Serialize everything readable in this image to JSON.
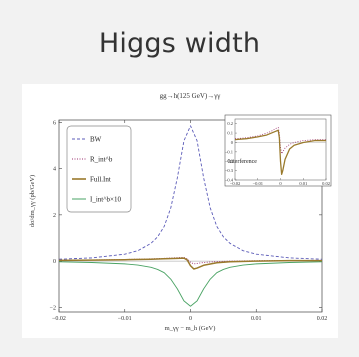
{
  "slide": {
    "title": "Higgs width"
  },
  "chart_data": {
    "type": "line",
    "title": "gg→h(125 GeV)→γγ",
    "xlabel": "m_γγ − m_h (GeV)",
    "ylabel": "dσ/dm_γγ (pb/GeV)",
    "xlim": [
      -0.02,
      0.02
    ],
    "ylim": [
      -2.2,
      6.1
    ],
    "xticks": [
      "−0.02",
      "−0.01",
      "0",
      "0.01",
      "0.02"
    ],
    "yticks": [
      "−2",
      "0",
      "2",
      "4",
      "6"
    ],
    "grid": false,
    "legend_position": "top-left",
    "series": [
      {
        "name": "BW",
        "style": "dashed",
        "color": "#5b5bb8",
        "x": [
          -0.02,
          -0.015,
          -0.01,
          -0.008,
          -0.006,
          -0.005,
          -0.004,
          -0.003,
          -0.002,
          -0.001,
          0,
          0.001,
          0.002,
          0.003,
          0.004,
          0.005,
          0.006,
          0.008,
          0.01,
          0.015,
          0.02
        ],
        "y": [
          0.08,
          0.14,
          0.3,
          0.45,
          0.77,
          1.05,
          1.5,
          2.3,
          3.6,
          5.2,
          5.85,
          5.2,
          3.6,
          2.3,
          1.5,
          1.05,
          0.77,
          0.45,
          0.3,
          0.14,
          0.08
        ]
      },
      {
        "name": "R_int^b",
        "style": "dotted",
        "color": "#9b2f6e",
        "x": [
          -0.02,
          -0.015,
          -0.01,
          -0.006,
          -0.004,
          -0.002,
          -0.001,
          -0.0005,
          0,
          0.0005,
          0.001,
          0.002,
          0.004,
          0.006,
          0.01,
          0.015,
          0.02
        ],
        "y": [
          0.04,
          0.05,
          0.07,
          0.1,
          0.12,
          0.15,
          0.16,
          0.1,
          -0.05,
          -0.12,
          -0.1,
          -0.06,
          -0.02,
          0.0,
          0.02,
          0.03,
          0.03
        ]
      },
      {
        "name": "Full.Int",
        "style": "solid",
        "color": "#9a7a2c",
        "x": [
          -0.02,
          -0.015,
          -0.01,
          -0.006,
          -0.004,
          -0.002,
          -0.001,
          -0.0005,
          0,
          0.0005,
          0.001,
          0.002,
          0.004,
          0.006,
          0.01,
          0.015,
          0.02
        ],
        "y": [
          0.03,
          0.04,
          0.06,
          0.08,
          0.1,
          0.12,
          0.13,
          0.05,
          -0.2,
          -0.34,
          -0.3,
          -0.18,
          -0.07,
          -0.03,
          0.0,
          0.02,
          0.02
        ]
      },
      {
        "name": "I_int^b×10",
        "style": "solid",
        "color": "#4aa364",
        "x": [
          -0.02,
          -0.015,
          -0.01,
          -0.008,
          -0.006,
          -0.005,
          -0.004,
          -0.003,
          -0.002,
          -0.001,
          0,
          0.001,
          0.002,
          0.003,
          0.004,
          0.005,
          0.006,
          0.008,
          0.01,
          0.015,
          0.02
        ],
        "y": [
          -0.03,
          -0.06,
          -0.12,
          -0.17,
          -0.27,
          -0.36,
          -0.5,
          -0.78,
          -1.2,
          -1.72,
          -1.95,
          -1.72,
          -1.2,
          -0.78,
          -0.5,
          -0.36,
          -0.27,
          -0.17,
          -0.12,
          -0.06,
          -0.03
        ]
      }
    ],
    "inset": {
      "label": "Interference",
      "xlim": [
        -0.02,
        0.02
      ],
      "ylim": [
        -0.4,
        0.25
      ],
      "xticks": [
        "−0.02",
        "−0.01",
        "0",
        "0.01",
        "0.02"
      ],
      "yticks": [
        "0.2",
        "0.1",
        "0",
        "−0.1",
        "−0.2",
        "−0.3",
        "−0.4"
      ],
      "series": [
        {
          "name": "R_int^b",
          "style": "dotted",
          "color": "#9b2f6e",
          "x": [
            -0.02,
            -0.015,
            -0.01,
            -0.006,
            -0.004,
            -0.002,
            -0.001,
            -0.0005,
            0,
            0.0005,
            0.001,
            0.002,
            0.004,
            0.006,
            0.01,
            0.015,
            0.02
          ],
          "y": [
            0.04,
            0.05,
            0.07,
            0.1,
            0.12,
            0.15,
            0.16,
            0.1,
            -0.05,
            -0.12,
            -0.1,
            -0.06,
            -0.02,
            0.0,
            0.02,
            0.03,
            0.03
          ]
        },
        {
          "name": "Full.Int",
          "style": "solid",
          "color": "#9a7a2c",
          "x": [
            -0.02,
            -0.015,
            -0.01,
            -0.006,
            -0.004,
            -0.002,
            -0.001,
            -0.0005,
            0,
            0.0005,
            0.001,
            0.002,
            0.004,
            0.006,
            0.01,
            0.015,
            0.02
          ],
          "y": [
            0.03,
            0.04,
            0.06,
            0.08,
            0.1,
            0.12,
            0.13,
            0.05,
            -0.2,
            -0.34,
            -0.3,
            -0.18,
            -0.07,
            -0.03,
            0.0,
            0.02,
            0.02
          ]
        }
      ]
    }
  }
}
